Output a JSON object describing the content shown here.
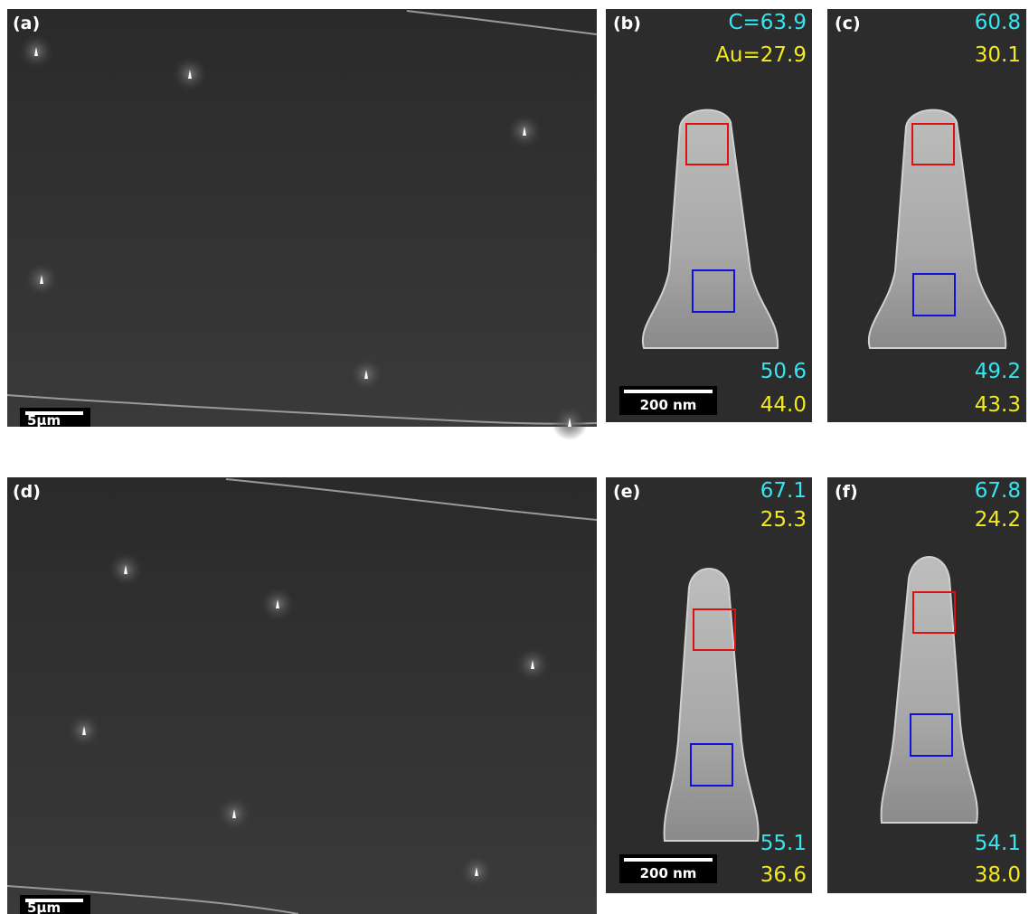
{
  "panels": [
    {
      "label": "(a)",
      "scale_bar": "5µm"
    },
    {
      "label": "(b)",
      "top_c": "C=63.9",
      "top_au": "Au=27.9",
      "bottom_c": "50.6",
      "bottom_au": "44.0",
      "scale_bar": "200 nm"
    },
    {
      "label": "(c)",
      "top_c": "60.8",
      "top_au": "30.1",
      "bottom_c": "49.2",
      "bottom_au": "43.3"
    },
    {
      "label": "(d)",
      "scale_bar": "5µm"
    },
    {
      "label": "(e)",
      "top_c": "67.1",
      "top_au": "25.3",
      "bottom_c": "55.1",
      "bottom_au": "36.6",
      "scale_bar": "200 nm"
    },
    {
      "label": "(f)",
      "top_c": "67.8",
      "top_au": "24.2",
      "bottom_c": "54.1",
      "bottom_au": "38.0"
    }
  ]
}
